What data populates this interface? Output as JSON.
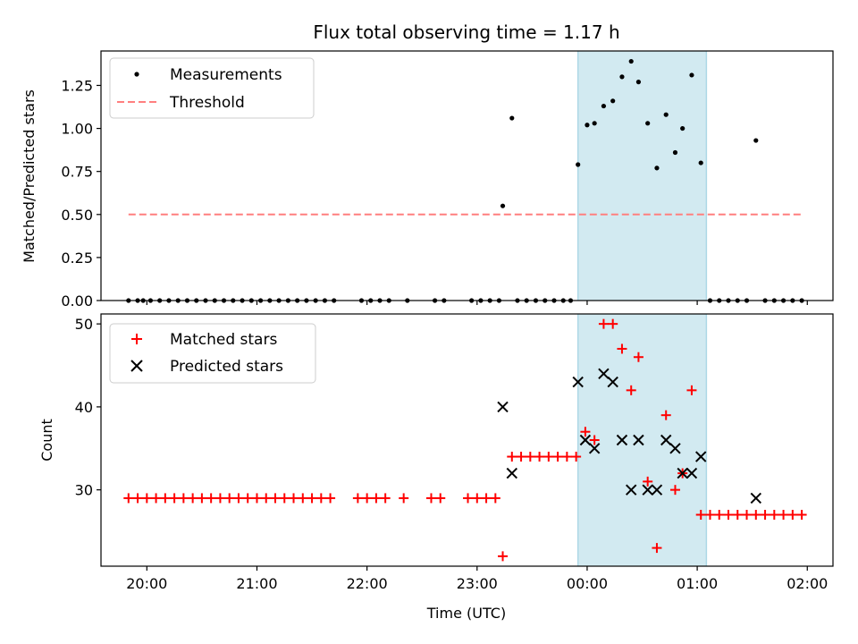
{
  "chart_data": {
    "title": "Flux total observing time = 1.17 h",
    "xlabel": "Time (UTC)",
    "x_unit": "hours UTC",
    "xlim": [
      "19:35",
      "02:14"
    ],
    "x_ticks": [
      "20:00",
      "21:00",
      "22:00",
      "23:00",
      "00:00",
      "01:00",
      "02:00"
    ],
    "shaded_region": {
      "start": "23:55",
      "end": "01:05",
      "color": "#add8e6"
    },
    "panels": [
      {
        "name": "ratio",
        "type": "scatter",
        "ylabel": "Matched/Predicted stars",
        "ylim": [
          0,
          1.45
        ],
        "y_ticks": [
          "0.00",
          "0.25",
          "0.50",
          "0.75",
          "1.00",
          "1.25"
        ],
        "legend_position": "upper-left",
        "series": [
          {
            "name": "Measurements",
            "color": "#000000",
            "marker": "dot",
            "points": [
              [
                "19:50",
                0
              ],
              [
                "19:55",
                0
              ],
              [
                "19:58",
                0
              ],
              [
                "20:02",
                0
              ],
              [
                "20:07",
                0
              ],
              [
                "20:12",
                0
              ],
              [
                "20:17",
                0
              ],
              [
                "20:22",
                0
              ],
              [
                "20:27",
                0
              ],
              [
                "20:32",
                0
              ],
              [
                "20:37",
                0
              ],
              [
                "20:42",
                0
              ],
              [
                "20:47",
                0
              ],
              [
                "20:52",
                0
              ],
              [
                "20:57",
                0
              ],
              [
                "21:02",
                0
              ],
              [
                "21:07",
                0
              ],
              [
                "21:12",
                0
              ],
              [
                "21:17",
                0
              ],
              [
                "21:22",
                0
              ],
              [
                "21:27",
                0
              ],
              [
                "21:32",
                0
              ],
              [
                "21:37",
                0
              ],
              [
                "21:42",
                0
              ],
              [
                "21:57",
                0
              ],
              [
                "22:02",
                0
              ],
              [
                "22:07",
                0
              ],
              [
                "22:12",
                0
              ],
              [
                "22:22",
                0
              ],
              [
                "22:37",
                0
              ],
              [
                "22:42",
                0
              ],
              [
                "22:57",
                0
              ],
              [
                "23:02",
                0
              ],
              [
                "23:07",
                0
              ],
              [
                "23:12",
                0
              ],
              [
                "23:14",
                0.55
              ],
              [
                "23:19",
                1.06
              ],
              [
                "23:22",
                0
              ],
              [
                "23:27",
                0
              ],
              [
                "23:32",
                0
              ],
              [
                "23:37",
                0
              ],
              [
                "23:42",
                0
              ],
              [
                "23:47",
                0
              ],
              [
                "23:51",
                0
              ],
              [
                "23:55",
                0.79
              ],
              [
                "00:00",
                1.02
              ],
              [
                "00:04",
                1.03
              ],
              [
                "00:09",
                1.13
              ],
              [
                "00:14",
                1.16
              ],
              [
                "00:19",
                1.3
              ],
              [
                "00:24",
                1.39
              ],
              [
                "00:28",
                1.27
              ],
              [
                "00:33",
                1.03
              ],
              [
                "00:38",
                0.77
              ],
              [
                "00:43",
                1.08
              ],
              [
                "00:48",
                0.86
              ],
              [
                "00:52",
                1.0
              ],
              [
                "00:57",
                1.31
              ],
              [
                "01:02",
                0.8
              ],
              [
                "01:07",
                0
              ],
              [
                "01:12",
                0
              ],
              [
                "01:17",
                0
              ],
              [
                "01:22",
                0
              ],
              [
                "01:27",
                0
              ],
              [
                "01:32",
                0.93
              ],
              [
                "01:37",
                0
              ],
              [
                "01:42",
                0
              ],
              [
                "01:47",
                0
              ],
              [
                "01:52",
                0
              ],
              [
                "01:57",
                0
              ]
            ]
          },
          {
            "name": "Threshold",
            "color": "#ff7f7f",
            "marker": "dashed-line",
            "points": [
              [
                "19:50",
                0.5
              ],
              [
                "01:57",
                0.5
              ]
            ]
          }
        ]
      },
      {
        "name": "counts",
        "type": "scatter",
        "ylabel": "Count",
        "ylim": [
          20.8,
          51.2
        ],
        "y_ticks": [
          "30",
          "40",
          "50"
        ],
        "legend_position": "upper-left",
        "series": [
          {
            "name": "Matched stars",
            "color": "#ff0000",
            "marker": "plus",
            "points": [
              [
                "19:50",
                29
              ],
              [
                "19:55",
                29
              ],
              [
                "20:00",
                29
              ],
              [
                "20:05",
                29
              ],
              [
                "20:10",
                29
              ],
              [
                "20:15",
                29
              ],
              [
                "20:20",
                29
              ],
              [
                "20:25",
                29
              ],
              [
                "20:30",
                29
              ],
              [
                "20:35",
                29
              ],
              [
                "20:40",
                29
              ],
              [
                "20:45",
                29
              ],
              [
                "20:50",
                29
              ],
              [
                "20:55",
                29
              ],
              [
                "21:00",
                29
              ],
              [
                "21:05",
                29
              ],
              [
                "21:10",
                29
              ],
              [
                "21:15",
                29
              ],
              [
                "21:20",
                29
              ],
              [
                "21:25",
                29
              ],
              [
                "21:30",
                29
              ],
              [
                "21:35",
                29
              ],
              [
                "21:40",
                29
              ],
              [
                "21:55",
                29
              ],
              [
                "22:00",
                29
              ],
              [
                "22:05",
                29
              ],
              [
                "22:10",
                29
              ],
              [
                "22:20",
                29
              ],
              [
                "22:35",
                29
              ],
              [
                "22:40",
                29
              ],
              [
                "22:55",
                29
              ],
              [
                "23:00",
                29
              ],
              [
                "23:05",
                29
              ],
              [
                "23:10",
                29
              ],
              [
                "23:14",
                22
              ],
              [
                "23:19",
                34
              ],
              [
                "23:24",
                34
              ],
              [
                "23:29",
                34
              ],
              [
                "23:34",
                34
              ],
              [
                "23:39",
                34
              ],
              [
                "23:44",
                34
              ],
              [
                "23:49",
                34
              ],
              [
                "23:54",
                34
              ],
              [
                "23:59",
                37
              ],
              [
                "00:04",
                36
              ],
              [
                "00:09",
                50
              ],
              [
                "00:14",
                50
              ],
              [
                "00:19",
                47
              ],
              [
                "00:24",
                42
              ],
              [
                "00:28",
                46
              ],
              [
                "00:33",
                31
              ],
              [
                "00:38",
                23
              ],
              [
                "00:43",
                39
              ],
              [
                "00:48",
                30
              ],
              [
                "00:52",
                32
              ],
              [
                "00:57",
                42
              ],
              [
                "01:02",
                27
              ],
              [
                "01:07",
                27
              ],
              [
                "01:12",
                27
              ],
              [
                "01:17",
                27
              ],
              [
                "01:22",
                27
              ],
              [
                "01:27",
                27
              ],
              [
                "01:32",
                27
              ],
              [
                "01:37",
                27
              ],
              [
                "01:42",
                27
              ],
              [
                "01:47",
                27
              ],
              [
                "01:52",
                27
              ],
              [
                "01:57",
                27
              ]
            ]
          },
          {
            "name": "Predicted stars",
            "color": "#000000",
            "marker": "x",
            "points": [
              [
                "23:14",
                40
              ],
              [
                "23:19",
                32
              ],
              [
                "23:55",
                43
              ],
              [
                "23:59",
                36
              ],
              [
                "00:04",
                35
              ],
              [
                "00:09",
                44
              ],
              [
                "00:14",
                43
              ],
              [
                "00:19",
                36
              ],
              [
                "00:24",
                30
              ],
              [
                "00:28",
                36
              ],
              [
                "00:33",
                30
              ],
              [
                "00:38",
                30
              ],
              [
                "00:43",
                36
              ],
              [
                "00:48",
                35
              ],
              [
                "00:52",
                32
              ],
              [
                "00:57",
                32
              ],
              [
                "01:02",
                34
              ],
              [
                "01:32",
                29
              ]
            ]
          }
        ]
      }
    ]
  }
}
